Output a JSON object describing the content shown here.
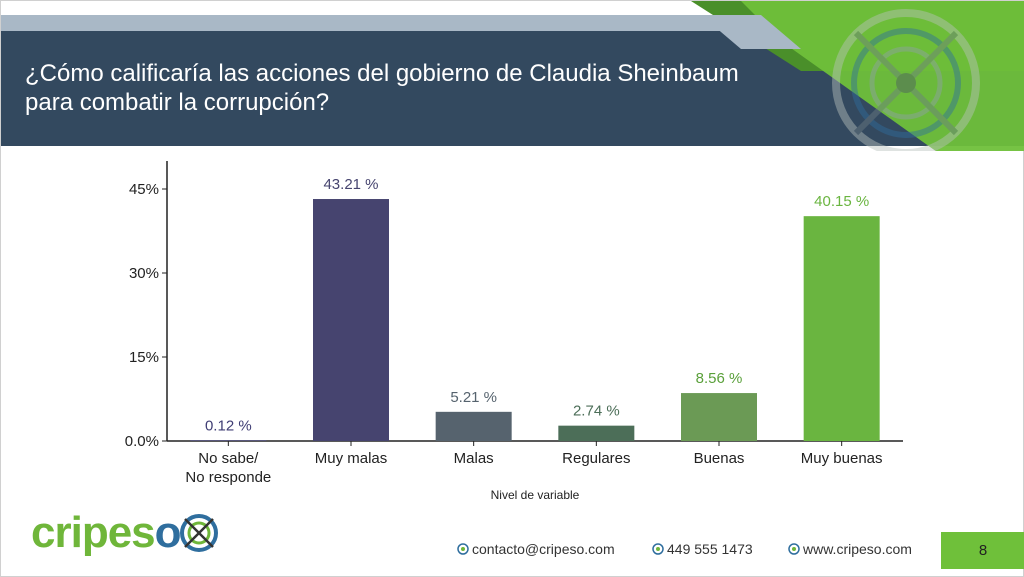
{
  "slide": {
    "title": "¿Cómo calificaría las acciones del gobierno de Claudia Sheinbaum para combatir la corrupción?",
    "page_number": "8"
  },
  "footer": {
    "logo_text": "cripeso",
    "email": "contacto@cripeso.com",
    "phone": "449 555 1473",
    "website": "www.cripeso.com"
  },
  "colors": {
    "header_dark": "#33495f",
    "header_light": "#a9b8c6",
    "accent_green": "#6fc03a",
    "accent_green_dark": "#4a8f2a"
  },
  "chart_data": {
    "type": "bar",
    "title": "",
    "xlabel": "Nivel de variable",
    "ylabel": "",
    "ylim": [
      0,
      50
    ],
    "yticks": [
      0,
      15,
      30,
      45
    ],
    "ytick_labels": [
      "0.0%",
      "15%",
      "30%",
      "45%"
    ],
    "categories": [
      "No sabe/\nNo responde",
      "Muy malas",
      "Malas",
      "Regulares",
      "Buenas",
      "Muy buenas"
    ],
    "values": [
      0.12,
      43.21,
      5.21,
      2.74,
      8.56,
      40.15
    ],
    "value_labels": [
      "0.12 %",
      "43.21 %",
      "5.21 %",
      "2.74 %",
      "8.56 %",
      "40.15 %"
    ],
    "bar_colors": [
      "#3f3d74",
      "#46446f",
      "#56636e",
      "#4c6e58",
      "#6b9a55",
      "#6ab540"
    ],
    "label_colors": [
      "#3f3d74",
      "#46446f",
      "#56636e",
      "#4c6e58",
      "#5aa03a",
      "#6ab540"
    ]
  }
}
